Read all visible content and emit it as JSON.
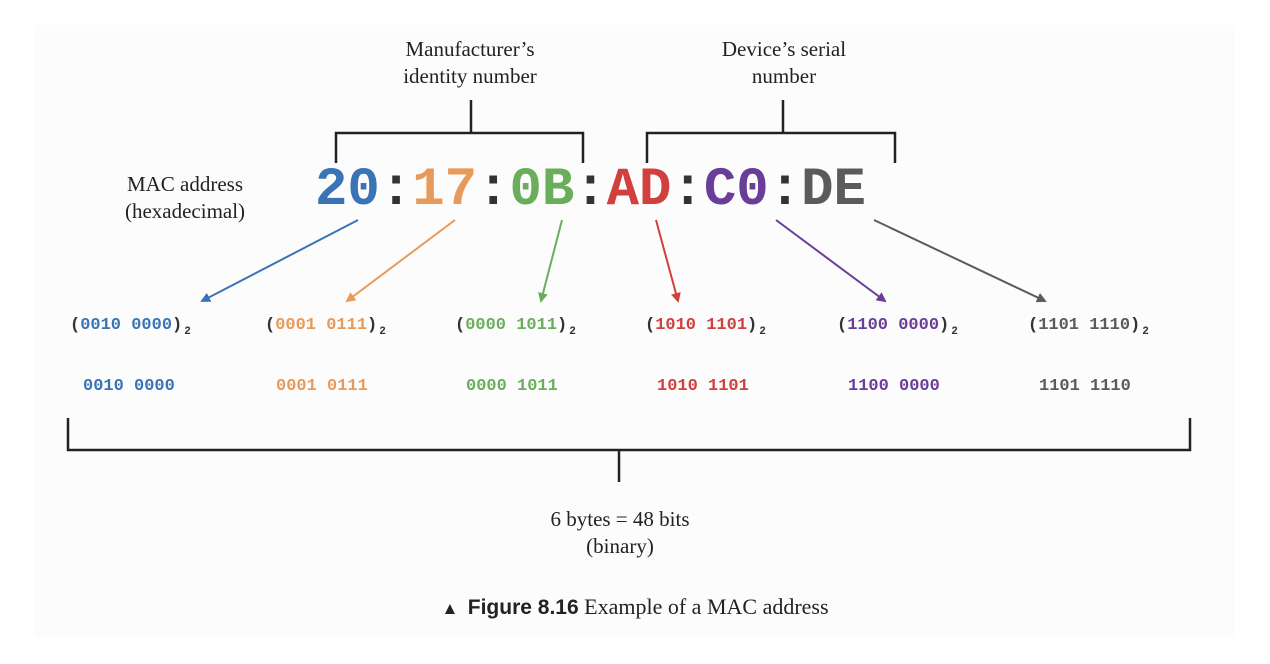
{
  "labels": {
    "manufacturer_line1": "Manufacturer’s",
    "manufacturer_line2": "identity number",
    "device_line1": "Device’s serial",
    "device_line2": "number",
    "mac_line1": "MAC address",
    "mac_line2": "(hexadecimal)",
    "total_line1": "6 bytes = 48 bits",
    "total_line2": "(binary)"
  },
  "mac": {
    "separator": ":",
    "bytes": [
      {
        "hex": "20",
        "binary": "0010 0000",
        "color": "#3b74b6"
      },
      {
        "hex": "17",
        "binary": "0001 0111",
        "color": "#e89a5a"
      },
      {
        "hex": "0B",
        "binary": "0000 1011",
        "color": "#6aae5c"
      },
      {
        "hex": "AD",
        "binary": "1010 1101",
        "color": "#d0403e"
      },
      {
        "hex": "C0",
        "binary": "1100 0000",
        "color": "#6a3d99"
      },
      {
        "hex": "DE",
        "binary": "1101 1110",
        "color": "#5b5b5b"
      }
    ],
    "open_paren": "(",
    "close_paren": ")",
    "subscript": "2"
  },
  "caption": {
    "marker": "▲",
    "figure": "Figure 8.16",
    "text": "Example of a MAC address"
  }
}
